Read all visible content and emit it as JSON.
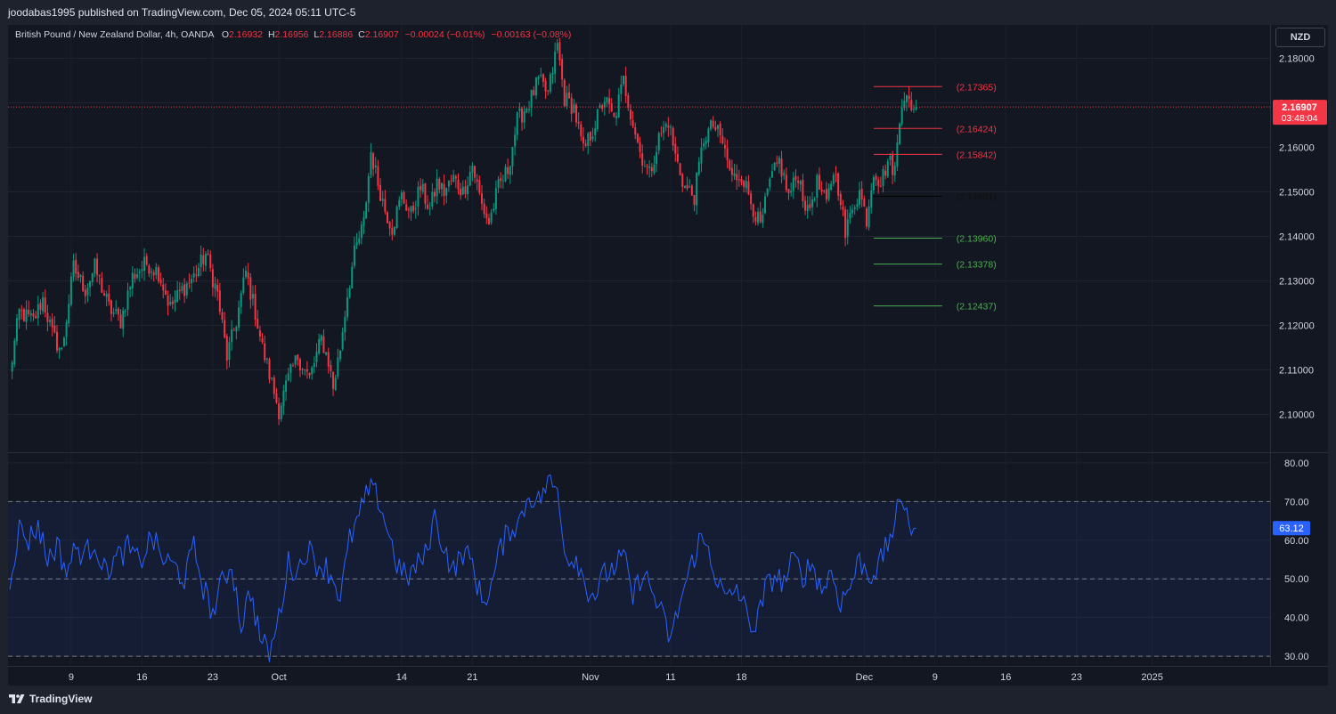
{
  "header": {
    "publisher_line": "joodabas1995 published on TradingView.com, Dec 05, 2024 05:11 UTC-5"
  },
  "legend": {
    "symbol": "British Pound / New Zealand Dollar, 4h, OANDA",
    "open_label": "O",
    "open": "2.16932",
    "high_label": "H",
    "high": "2.16956",
    "low_label": "L",
    "low": "2.16886",
    "close_label": "C",
    "close": "2.16907",
    "change": "−0.00024 (−0.01%)",
    "change2": "−0.00163 (−0.08%)"
  },
  "currency_button": "NZD",
  "price_badge": {
    "price": "2.16907",
    "countdown": "03:48:04"
  },
  "rsi_badge": "63.12",
  "brand": "TradingView",
  "colors": {
    "bull": "#089981",
    "bear": "#f23645",
    "rsi": "#2962ff",
    "resistance": "#f23645",
    "support": "#4caf50",
    "pivot": "#000000"
  },
  "chart_data": [
    {
      "type": "candlestick",
      "price_axis": {
        "ylim": [
          2.0915,
          2.1875
        ],
        "ticks": [
          "2.18000",
          "2.17000",
          "2.16000",
          "2.15000",
          "2.14000",
          "2.13000",
          "2.12000",
          "2.11000",
          "2.10000"
        ],
        "tick_values": [
          2.18,
          2.17,
          2.16,
          2.15,
          2.14,
          2.13,
          2.12,
          2.11,
          2.1
        ]
      },
      "time_axis": {
        "labels": [
          "9",
          "16",
          "23",
          "Oct",
          "14",
          "21",
          "Nov",
          "11",
          "18",
          "Dec",
          "9",
          "16",
          "23",
          "2025"
        ],
        "bar_index": [
          26,
          56,
          86,
          114,
          166,
          196,
          246,
          280,
          310,
          362,
          392,
          422,
          452,
          484
        ]
      },
      "price_path": [
        [
          0,
          2.109
        ],
        [
          4,
          2.123
        ],
        [
          10,
          2.121
        ],
        [
          14,
          2.126
        ],
        [
          18,
          2.118
        ],
        [
          22,
          2.114
        ],
        [
          27,
          2.133
        ],
        [
          32,
          2.128
        ],
        [
          36,
          2.133
        ],
        [
          42,
          2.124
        ],
        [
          47,
          2.121
        ],
        [
          52,
          2.131
        ],
        [
          58,
          2.134
        ],
        [
          63,
          2.132
        ],
        [
          68,
          2.124
        ],
        [
          73,
          2.128
        ],
        [
          78,
          2.131
        ],
        [
          83,
          2.136
        ],
        [
          88,
          2.127
        ],
        [
          92,
          2.113
        ],
        [
          96,
          2.121
        ],
        [
          100,
          2.132
        ],
        [
          104,
          2.123
        ],
        [
          107,
          2.115
        ],
        [
          111,
          2.107
        ],
        [
          114,
          2.101
        ],
        [
          118,
          2.108
        ],
        [
          122,
          2.113
        ],
        [
          127,
          2.108
        ],
        [
          132,
          2.117
        ],
        [
          135,
          2.112
        ],
        [
          137,
          2.106
        ],
        [
          140,
          2.115
        ],
        [
          143,
          2.127
        ],
        [
          146,
          2.136
        ],
        [
          150,
          2.143
        ],
        [
          153,
          2.159
        ],
        [
          156,
          2.152
        ],
        [
          159,
          2.146
        ],
        [
          162,
          2.142
        ],
        [
          166,
          2.149
        ],
        [
          170,
          2.145
        ],
        [
          174,
          2.151
        ],
        [
          178,
          2.146
        ],
        [
          181,
          2.152
        ],
        [
          184,
          2.15
        ],
        [
          188,
          2.153
        ],
        [
          192,
          2.15
        ],
        [
          196,
          2.156
        ],
        [
          200,
          2.147
        ],
        [
          203,
          2.143
        ],
        [
          207,
          2.151
        ],
        [
          211,
          2.155
        ],
        [
          215,
          2.166
        ],
        [
          220,
          2.17
        ],
        [
          224,
          2.175
        ],
        [
          228,
          2.172
        ],
        [
          232,
          2.183
        ],
        [
          235,
          2.171
        ],
        [
          239,
          2.169
        ],
        [
          243,
          2.159
        ],
        [
          247,
          2.164
        ],
        [
          252,
          2.171
        ],
        [
          256,
          2.166
        ],
        [
          260,
          2.175
        ],
        [
          263,
          2.168
        ],
        [
          267,
          2.159
        ],
        [
          271,
          2.154
        ],
        [
          275,
          2.162
        ],
        [
          279,
          2.166
        ],
        [
          282,
          2.158
        ],
        [
          286,
          2.151
        ],
        [
          290,
          2.149
        ],
        [
          294,
          2.162
        ],
        [
          298,
          2.165
        ],
        [
          302,
          2.161
        ],
        [
          306,
          2.153
        ],
        [
          310,
          2.154
        ],
        [
          314,
          2.148
        ],
        [
          318,
          2.142
        ],
        [
          322,
          2.152
        ],
        [
          326,
          2.157
        ],
        [
          330,
          2.149
        ],
        [
          334,
          2.154
        ],
        [
          338,
          2.145
        ],
        [
          342,
          2.152
        ],
        [
          346,
          2.147
        ],
        [
          349,
          2.155
        ],
        [
          352,
          2.149
        ],
        [
          354,
          2.14
        ],
        [
          357,
          2.147
        ],
        [
          360,
          2.15
        ],
        [
          363,
          2.144
        ],
        [
          366,
          2.155
        ],
        [
          369,
          2.152
        ],
        [
          372,
          2.157
        ],
        [
          375,
          2.155
        ],
        [
          378,
          2.171
        ],
        [
          380,
          2.173
        ],
        [
          382,
          2.167
        ],
        [
          384,
          2.169
        ]
      ],
      "levels": [
        {
          "value": 2.17365,
          "label": "(2.17365)",
          "kind": "resistance"
        },
        {
          "value": 2.16424,
          "label": "(2.16424)",
          "kind": "resistance"
        },
        {
          "value": 2.15842,
          "label": "(2.15842)",
          "kind": "resistance"
        },
        {
          "value": 2.14901,
          "label": "(2.14901)",
          "kind": "pivot"
        },
        {
          "value": 2.1396,
          "label": "(2.13960)",
          "kind": "support"
        },
        {
          "value": 2.13378,
          "label": "(2.13378)",
          "kind": "support"
        },
        {
          "value": 2.12437,
          "label": "(2.12437)",
          "kind": "support"
        }
      ],
      "last_price": 2.16907
    },
    {
      "type": "line",
      "name": "",
      "ylim": [
        27.5,
        82.5
      ],
      "ticks": [
        "80.00",
        "70.00",
        "60.00",
        "50.00",
        "40.00",
        "30.00"
      ],
      "tick_values": [
        80,
        70,
        60,
        50,
        40,
        30
      ],
      "band": [
        30,
        70
      ],
      "midline": 50,
      "last_value": 63.12,
      "rsi_path": [
        [
          0,
          50
        ],
        [
          4,
          63
        ],
        [
          8,
          60
        ],
        [
          12,
          64
        ],
        [
          16,
          55
        ],
        [
          20,
          59
        ],
        [
          24,
          52
        ],
        [
          28,
          58
        ],
        [
          32,
          56
        ],
        [
          36,
          60
        ],
        [
          40,
          52
        ],
        [
          45,
          55
        ],
        [
          50,
          58
        ],
        [
          55,
          54
        ],
        [
          60,
          61
        ],
        [
          65,
          55
        ],
        [
          70,
          53
        ],
        [
          74,
          50
        ],
        [
          78,
          58
        ],
        [
          82,
          48
        ],
        [
          86,
          41
        ],
        [
          90,
          49
        ],
        [
          94,
          54
        ],
        [
          98,
          38
        ],
        [
          102,
          47
        ],
        [
          106,
          35
        ],
        [
          110,
          30
        ],
        [
          114,
          40
        ],
        [
          118,
          54
        ],
        [
          122,
          52
        ],
        [
          126,
          58
        ],
        [
          130,
          54
        ],
        [
          134,
          53
        ],
        [
          138,
          49
        ],
        [
          140,
          45
        ],
        [
          144,
          60
        ],
        [
          148,
          66
        ],
        [
          152,
          73
        ],
        [
          156,
          71
        ],
        [
          160,
          63
        ],
        [
          164,
          54
        ],
        [
          168,
          50
        ],
        [
          172,
          53
        ],
        [
          176,
          56
        ],
        [
          180,
          66
        ],
        [
          184,
          58
        ],
        [
          188,
          52
        ],
        [
          192,
          57
        ],
        [
          196,
          54
        ],
        [
          200,
          44
        ],
        [
          204,
          48
        ],
        [
          208,
          58
        ],
        [
          212,
          63
        ],
        [
          216,
          65
        ],
        [
          220,
          72
        ],
        [
          224,
          70
        ],
        [
          228,
          75
        ],
        [
          232,
          73
        ],
        [
          236,
          55
        ],
        [
          240,
          56
        ],
        [
          244,
          48
        ],
        [
          248,
          46
        ],
        [
          252,
          51
        ],
        [
          256,
          53
        ],
        [
          260,
          56
        ],
        [
          264,
          45
        ],
        [
          268,
          52
        ],
        [
          272,
          47
        ],
        [
          276,
          41
        ],
        [
          280,
          34
        ],
        [
          284,
          44
        ],
        [
          288,
          52
        ],
        [
          292,
          60
        ],
        [
          296,
          58
        ],
        [
          300,
          49
        ],
        [
          304,
          44
        ],
        [
          308,
          48
        ],
        [
          312,
          41
        ],
        [
          316,
          37
        ],
        [
          320,
          47
        ],
        [
          324,
          51
        ],
        [
          328,
          49
        ],
        [
          332,
          55
        ],
        [
          336,
          51
        ],
        [
          340,
          54
        ],
        [
          344,
          47
        ],
        [
          348,
          52
        ],
        [
          352,
          44
        ],
        [
          356,
          48
        ],
        [
          360,
          55
        ],
        [
          364,
          51
        ],
        [
          368,
          53
        ],
        [
          372,
          59
        ],
        [
          376,
          67
        ],
        [
          380,
          70
        ],
        [
          382,
          62
        ],
        [
          384,
          63.12
        ]
      ]
    }
  ]
}
